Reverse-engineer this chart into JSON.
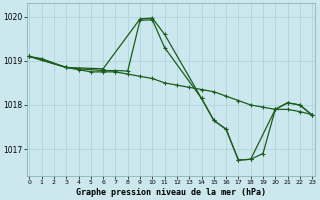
{
  "title": "Graphe pression niveau de la mer (hPa)",
  "plot_bg_color": "#cce8ee",
  "fig_bg_color": "#cce8ee",
  "footer_bg_color": "#4a7a4a",
  "grid_color": "#aed4dc",
  "line_color": "#1a5c1a",
  "marker_color": "#1a5c1a",
  "x_min": 0,
  "x_max": 23,
  "y_min": 1016.4,
  "y_max": 1020.3,
  "y_ticks": [
    1017,
    1018,
    1019,
    1020
  ],
  "x_ticks": [
    0,
    1,
    2,
    3,
    4,
    5,
    6,
    7,
    8,
    9,
    10,
    11,
    12,
    13,
    14,
    15,
    16,
    17,
    18,
    19,
    20,
    21,
    22,
    23
  ],
  "line1_x": [
    0,
    1,
    3,
    4,
    5,
    6,
    7,
    8,
    9,
    10,
    11,
    12,
    13,
    14,
    15,
    16,
    17,
    18,
    19,
    20,
    21,
    22,
    23
  ],
  "line1_y": [
    1019.1,
    1019.05,
    1018.85,
    1018.8,
    1018.75,
    1018.75,
    1018.75,
    1018.7,
    1018.65,
    1018.6,
    1018.5,
    1018.45,
    1018.4,
    1018.35,
    1018.3,
    1018.2,
    1018.1,
    1018.0,
    1017.95,
    1017.9,
    1017.9,
    1017.85,
    1017.78
  ],
  "line2_x": [
    0,
    3,
    6,
    9,
    10,
    11,
    14,
    15,
    16,
    17,
    18,
    19,
    20,
    21,
    22,
    23
  ],
  "line2_y": [
    1019.1,
    1018.85,
    1018.82,
    1019.95,
    1019.97,
    1019.6,
    1018.15,
    1017.65,
    1017.45,
    1016.75,
    1016.77,
    1016.9,
    1017.9,
    1018.05,
    1018.0,
    1017.77
  ],
  "line3_x": [
    0,
    3,
    4,
    6,
    7,
    8,
    9,
    10,
    11,
    14,
    15,
    16,
    17,
    18,
    20,
    21,
    22,
    23
  ],
  "line3_y": [
    1019.1,
    1018.85,
    1018.82,
    1018.78,
    1018.78,
    1018.77,
    1019.92,
    1019.93,
    1019.3,
    1018.15,
    1017.65,
    1017.45,
    1016.75,
    1016.77,
    1017.9,
    1018.05,
    1018.0,
    1017.77
  ]
}
